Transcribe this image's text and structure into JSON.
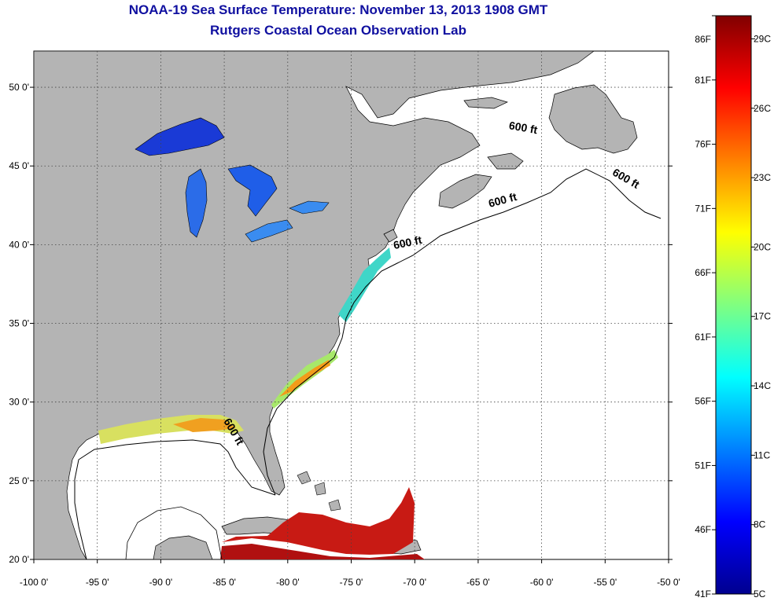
{
  "title": "NOAA-19 Sea Surface Temperature:  November 13, 2013 1908 GMT",
  "subtitle": "Rutgers Coastal Ocean Observation Lab",
  "colors": {
    "land": "#b4b4b4",
    "water": "#ffffff",
    "grid": "#555555",
    "title": "#1010a0"
  },
  "map": {
    "lon_range": [
      -100,
      -50
    ],
    "lat_range": [
      20,
      52.3
    ],
    "lon_ticks": [
      {
        "value": -100,
        "label": "-100 0'"
      },
      {
        "value": -95,
        "label": "-95 0'"
      },
      {
        "value": -90,
        "label": "-90 0'"
      },
      {
        "value": -85,
        "label": "-85 0'"
      },
      {
        "value": -80,
        "label": "-80 0'"
      },
      {
        "value": -75,
        "label": "-75 0'"
      },
      {
        "value": -70,
        "label": "-70 0'"
      },
      {
        "value": -65,
        "label": "-65 0'"
      },
      {
        "value": -60,
        "label": "-60 0'"
      },
      {
        "value": -55,
        "label": "-55 0'"
      },
      {
        "value": -50,
        "label": "-50 0'"
      }
    ],
    "lat_ticks": [
      {
        "value": 50,
        "label": "50 0'"
      },
      {
        "value": 45,
        "label": "45 0'"
      },
      {
        "value": 40,
        "label": "40 0'"
      },
      {
        "value": 35,
        "label": "35 0'"
      },
      {
        "value": 30,
        "label": "30 0'"
      },
      {
        "value": 25,
        "label": "25 0'"
      },
      {
        "value": 20,
        "label": "20 0'"
      }
    ],
    "contour_labels": [
      {
        "text": "600 ft",
        "lon": -61.5,
        "lat": 47.2,
        "rotate": 10
      },
      {
        "text": "600 ft",
        "lon": -53.5,
        "lat": 44.0,
        "rotate": 30
      },
      {
        "text": "600 ft",
        "lon": -63.0,
        "lat": 42.6,
        "rotate": -15
      },
      {
        "text": "600 ft",
        "lon": -70.5,
        "lat": 39.9,
        "rotate": -12
      },
      {
        "text": "600 ft",
        "lon": -84.5,
        "lat": 28.0,
        "rotate": 60
      }
    ]
  },
  "colorbar": {
    "min_f": 41,
    "max_f": 86,
    "f_labels": [
      "86F",
      "81F",
      "76F",
      "71F",
      "66F",
      "61F",
      "56F",
      "51F",
      "46F",
      "41F"
    ],
    "f_values": [
      86,
      81,
      76,
      71,
      66,
      61,
      56,
      51,
      46,
      41
    ],
    "c_labels": [
      "29C",
      "26C",
      "23C",
      "20C",
      "17C",
      "14C",
      "11C",
      "8C",
      "5C"
    ],
    "c_values": [
      29,
      26,
      23,
      20,
      17,
      14,
      11,
      8,
      5
    ],
    "stops": [
      "#00008f",
      "#0000ff",
      "#0080ff",
      "#00ffff",
      "#80ff80",
      "#ffff00",
      "#ff8000",
      "#ff0000",
      "#800000"
    ]
  }
}
